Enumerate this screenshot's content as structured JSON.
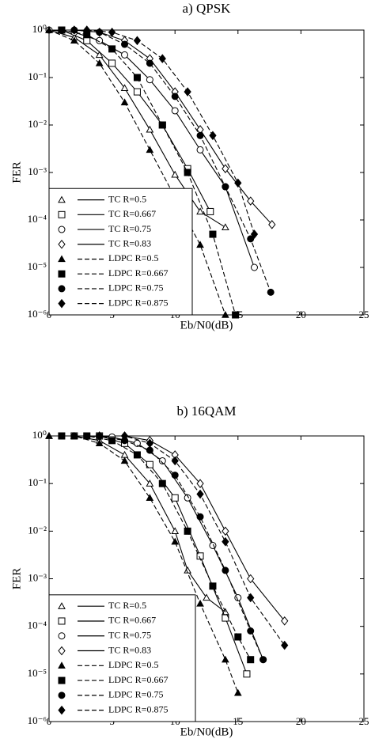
{
  "chart_data": [
    {
      "type": "line",
      "title": "a) QPSK",
      "xlabel": "Eb/N0(dB)",
      "ylabel": "FER",
      "log_y": true,
      "xlim": [
        0,
        25
      ],
      "xticks": [
        0,
        5,
        10,
        15,
        20,
        25
      ],
      "ylim": [
        1e-06,
        1
      ],
      "yticks": [
        {
          "value": 1e-06,
          "label": "10⁻⁶"
        },
        {
          "value": 1e-05,
          "label": "10⁻⁵"
        },
        {
          "value": 0.0001,
          "label": "10⁻⁴"
        },
        {
          "value": 0.001,
          "label": "10⁻³"
        },
        {
          "value": 0.01,
          "label": "10⁻²"
        },
        {
          "value": 0.1,
          "label": "10⁻¹"
        },
        {
          "value": 1,
          "label": "10⁰"
        }
      ],
      "legend": "lower left",
      "series": [
        {
          "name": "TC R=0.5",
          "color": "#000000",
          "marker": "triangle",
          "filled": false,
          "dashed": false,
          "x": [
            0,
            2,
            4,
            6,
            8,
            10,
            12,
            14
          ],
          "values": [
            1,
            0.7,
            0.3,
            0.06,
            0.008,
            0.0009,
            0.00015,
            7e-05
          ]
        },
        {
          "name": "TC R=0.667",
          "color": "#000000",
          "marker": "square",
          "filled": false,
          "dashed": false,
          "x": [
            1,
            3,
            5,
            7,
            9,
            11,
            12.8
          ],
          "values": [
            1,
            0.6,
            0.2,
            0.05,
            0.01,
            0.0012,
            0.00015
          ]
        },
        {
          "name": "TC R=0.75",
          "color": "#000000",
          "marker": "circle",
          "filled": false,
          "dashed": false,
          "x": [
            0,
            2,
            4,
            6,
            8,
            10,
            12,
            14,
            16.3
          ],
          "values": [
            1,
            0.9,
            0.6,
            0.3,
            0.09,
            0.02,
            0.003,
            0.0005,
            1e-05
          ]
        },
        {
          "name": "TC R=0.83",
          "color": "#000000",
          "marker": "diamond",
          "filled": false,
          "dashed": false,
          "x": [
            2,
            4,
            6,
            8,
            10,
            12,
            14,
            16,
            17.7
          ],
          "values": [
            1,
            0.9,
            0.6,
            0.25,
            0.05,
            0.008,
            0.0012,
            0.00025,
            8e-05
          ]
        },
        {
          "name": "LDPC R=0.5",
          "color": "#000000",
          "marker": "triangle",
          "filled": true,
          "dashed": true,
          "x": [
            0,
            2,
            4,
            6,
            8,
            10,
            12,
            14
          ],
          "values": [
            1,
            0.6,
            0.2,
            0.03,
            0.003,
            0.0003,
            3e-05,
            1e-06
          ]
        },
        {
          "name": "LDPC R=0.667",
          "color": "#000000",
          "marker": "square",
          "filled": true,
          "dashed": true,
          "x": [
            1,
            3,
            5,
            7,
            9,
            11,
            13,
            14.8
          ],
          "values": [
            1,
            0.8,
            0.4,
            0.1,
            0.01,
            0.001,
            5e-05,
            1e-06
          ]
        },
        {
          "name": "LDPC R=0.75",
          "color": "#000000",
          "marker": "circle",
          "filled": true,
          "dashed": true,
          "x": [
            2,
            4,
            6,
            8,
            10,
            12,
            14,
            16,
            17.6
          ],
          "values": [
            1,
            0.9,
            0.5,
            0.2,
            0.04,
            0.006,
            0.0005,
            4e-05,
            3e-06
          ]
        },
        {
          "name": "LDPC R=0.875",
          "color": "#000000",
          "marker": "diamond",
          "filled": true,
          "dashed": true,
          "x": [
            3,
            5,
            7,
            9,
            11,
            13,
            15,
            16.3
          ],
          "values": [
            1,
            0.9,
            0.6,
            0.25,
            0.05,
            0.006,
            0.0006,
            5e-05
          ]
        }
      ]
    },
    {
      "type": "line",
      "title": "b) 16QAM",
      "xlabel": "Eb/N0(dB)",
      "ylabel": "FER",
      "log_y": true,
      "xlim": [
        0,
        25
      ],
      "xticks": [
        0,
        5,
        10,
        15,
        20,
        25
      ],
      "ylim": [
        1e-06,
        1
      ],
      "yticks": [
        {
          "value": 1e-06,
          "label": "10⁻⁶"
        },
        {
          "value": 1e-05,
          "label": "10⁻⁵"
        },
        {
          "value": 0.0001,
          "label": "10⁻⁴"
        },
        {
          "value": 0.001,
          "label": "10⁻³"
        },
        {
          "value": 0.01,
          "label": "10⁻²"
        },
        {
          "value": 0.1,
          "label": "10⁻¹"
        },
        {
          "value": 1,
          "label": "10⁰"
        }
      ],
      "legend": "lower left",
      "series": [
        {
          "name": "TC R=0.5",
          "color": "#000000",
          "marker": "triangle",
          "filled": false,
          "dashed": false,
          "x": [
            0,
            2,
            4,
            6,
            8,
            10,
            11,
            12.5,
            14
          ],
          "values": [
            1,
            1,
            0.8,
            0.4,
            0.1,
            0.01,
            0.0015,
            0.0004,
            0.0002
          ]
        },
        {
          "name": "TC R=0.667",
          "color": "#000000",
          "marker": "square",
          "filled": false,
          "dashed": false,
          "x": [
            2,
            4,
            6,
            8,
            10,
            12,
            14,
            15.7
          ],
          "values": [
            1,
            1,
            0.7,
            0.25,
            0.05,
            0.003,
            0.00015,
            1e-05
          ]
        },
        {
          "name": "TC R=0.75",
          "color": "#000000",
          "marker": "circle",
          "filled": false,
          "dashed": false,
          "x": [
            3,
            5,
            7,
            9,
            11,
            13,
            15,
            17
          ],
          "values": [
            1,
            0.95,
            0.7,
            0.3,
            0.05,
            0.005,
            0.0004,
            2e-05
          ]
        },
        {
          "name": "TC R=0.83",
          "color": "#000000",
          "marker": "diamond",
          "filled": false,
          "dashed": false,
          "x": [
            4,
            6,
            8,
            10,
            12,
            14,
            16,
            18.7
          ],
          "values": [
            1,
            1,
            0.8,
            0.4,
            0.1,
            0.01,
            0.001,
            0.00013
          ]
        },
        {
          "name": "LDPC R=0.5",
          "color": "#000000",
          "marker": "triangle",
          "filled": true,
          "dashed": true,
          "x": [
            0,
            2,
            4,
            6,
            8,
            10,
            12,
            14,
            15
          ],
          "values": [
            1,
            1,
            0.7,
            0.3,
            0.05,
            0.006,
            0.0003,
            2e-05,
            4e-06
          ]
        },
        {
          "name": "LDPC R=0.667",
          "color": "#000000",
          "marker": "square",
          "filled": true,
          "dashed": true,
          "x": [
            1,
            3,
            5,
            7,
            9,
            11,
            13,
            15,
            16
          ],
          "values": [
            1,
            1,
            0.8,
            0.4,
            0.1,
            0.01,
            0.0007,
            6e-05,
            2e-05
          ]
        },
        {
          "name": "LDPC R=0.75",
          "color": "#000000",
          "marker": "circle",
          "filled": true,
          "dashed": true,
          "x": [
            2,
            4,
            6,
            8,
            10,
            12,
            14,
            16,
            17
          ],
          "values": [
            1,
            1,
            0.8,
            0.5,
            0.15,
            0.02,
            0.0015,
            8e-05,
            2e-05
          ]
        },
        {
          "name": "LDPC R=0.875",
          "color": "#000000",
          "marker": "diamond",
          "filled": true,
          "dashed": true,
          "x": [
            4,
            6,
            8,
            10,
            12,
            14,
            16,
            18.7
          ],
          "values": [
            1,
            1,
            0.7,
            0.3,
            0.06,
            0.006,
            0.0004,
            4e-05
          ]
        }
      ]
    }
  ]
}
